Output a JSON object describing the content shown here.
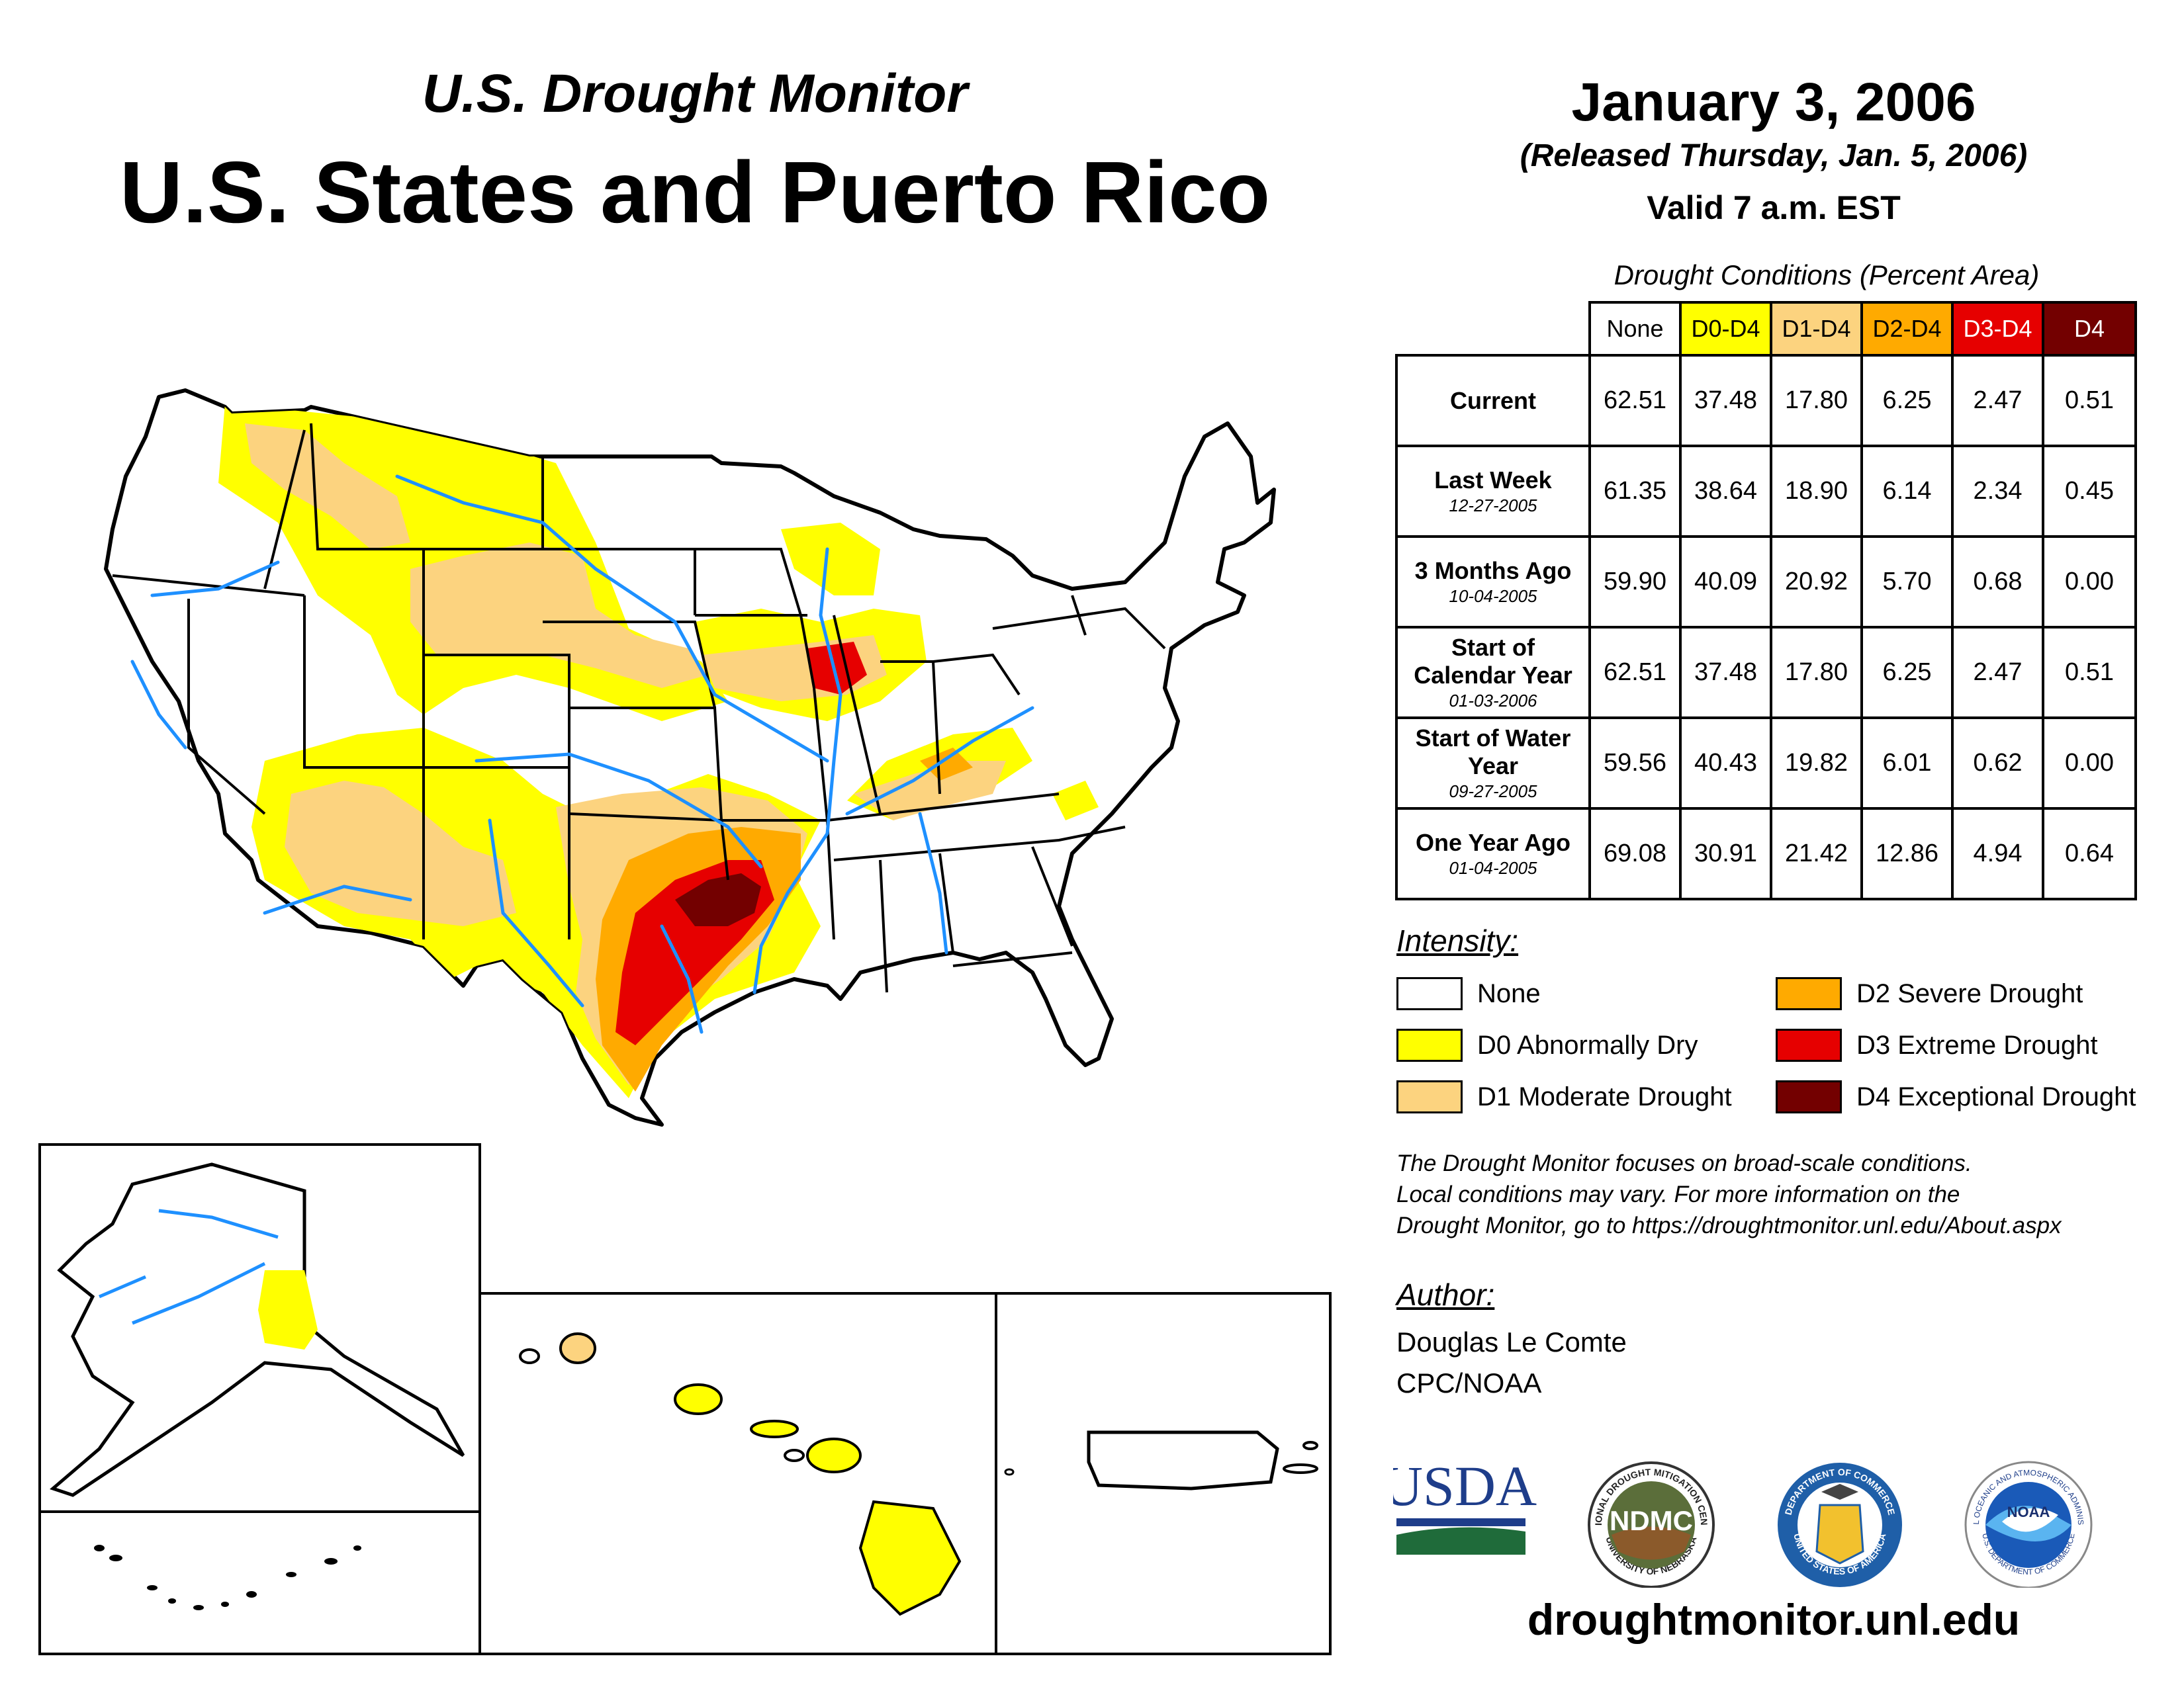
{
  "header": {
    "subtitle": "U.S. Drought Monitor",
    "title": "U.S. States and Puerto Rico",
    "date": "January 3, 2006",
    "released": "(Released Thursday, Jan. 5, 2006)",
    "valid": "Valid 7 a.m. EST"
  },
  "table": {
    "caption": "Drought Conditions (Percent Area)",
    "columns": [
      "None",
      "D0-D4",
      "D1-D4",
      "D2-D4",
      "D3-D4",
      "D4"
    ],
    "column_colors": [
      "#ffffff",
      "#ffff00",
      "#fcd37f",
      "#ffaa00",
      "#e60000",
      "#730000"
    ],
    "column_text_colors": [
      "#000000",
      "#000000",
      "#000000",
      "#000000",
      "#ffffff",
      "#ffffff"
    ],
    "rows": [
      {
        "label": "Current",
        "date": "",
        "values": [
          "62.51",
          "37.48",
          "17.80",
          "6.25",
          "2.47",
          "0.51"
        ]
      },
      {
        "label": "Last Week",
        "date": "12-27-2005",
        "values": [
          "61.35",
          "38.64",
          "18.90",
          "6.14",
          "2.34",
          "0.45"
        ]
      },
      {
        "label": "3 Months Ago",
        "date": "10-04-2005",
        "values": [
          "59.90",
          "40.09",
          "20.92",
          "5.70",
          "0.68",
          "0.00"
        ]
      },
      {
        "label": "Start of Calendar Year",
        "date": "01-03-2006",
        "values": [
          "62.51",
          "37.48",
          "17.80",
          "6.25",
          "2.47",
          "0.51"
        ]
      },
      {
        "label": "Start of Water Year",
        "date": "09-27-2005",
        "values": [
          "59.56",
          "40.43",
          "19.82",
          "6.01",
          "0.62",
          "0.00"
        ]
      },
      {
        "label": "One Year Ago",
        "date": "01-04-2005",
        "values": [
          "69.08",
          "30.91",
          "21.42",
          "12.86",
          "4.94",
          "0.64"
        ]
      }
    ]
  },
  "legend": {
    "title": "Intensity:",
    "items": [
      {
        "label": "None",
        "color": "#ffffff"
      },
      {
        "label": "D0 Abnormally Dry",
        "color": "#ffff00"
      },
      {
        "label": "D1 Moderate Drought",
        "color": "#fcd37f"
      },
      {
        "label": "D2 Severe Drought",
        "color": "#ffaa00"
      },
      {
        "label": "D3 Extreme Drought",
        "color": "#e60000"
      },
      {
        "label": "D4 Exceptional Drought",
        "color": "#730000"
      }
    ]
  },
  "note": {
    "line1": "The Drought Monitor focuses on broad-scale conditions.",
    "line2": "Local conditions may vary. For more information on the",
    "line3": "Drought Monitor, go to https://droughtmonitor.unl.edu/About.aspx"
  },
  "author": {
    "title": "Author:",
    "name": "Douglas Le Comte",
    "org": "CPC/NOAA"
  },
  "logos": {
    "usda": "USDA",
    "ndmc": "NDMC",
    "ndmc_ring_top": "NATIONAL DROUGHT MITIGATION CENTER",
    "ndmc_ring_bottom": "UNIVERSITY OF NEBRASKA",
    "doc_ring_top": "DEPARTMENT OF COMMERCE",
    "doc_ring_bottom": "UNITED STATES OF AMERICA",
    "noaa": "NOAA",
    "noaa_ring_top": "NATIONAL OCEANIC AND ATMOSPHERIC ADMINISTRATION",
    "noaa_ring_bottom": "U.S. DEPARTMENT OF COMMERCE"
  },
  "footer": {
    "url": "droughtmonitor.unl.edu"
  }
}
